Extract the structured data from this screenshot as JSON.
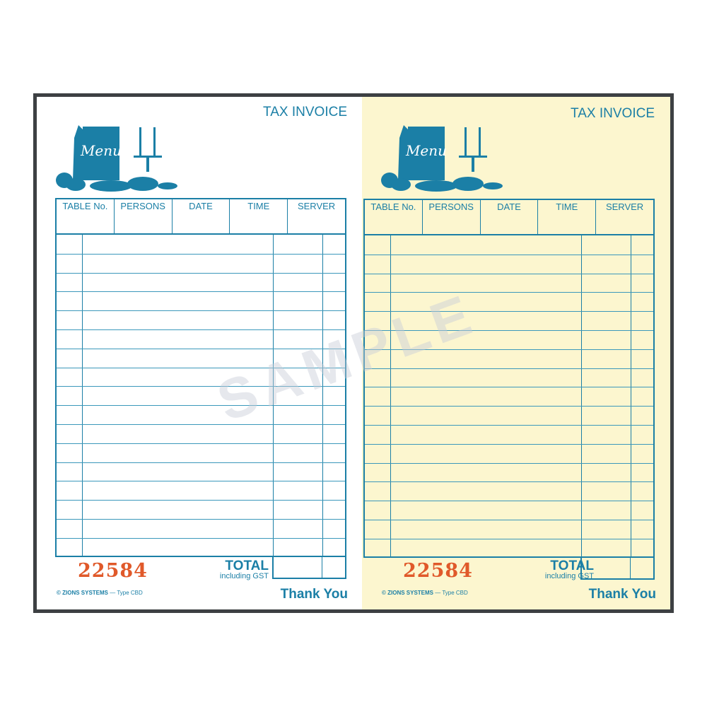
{
  "watermark": "SAMPLE",
  "logo_text": "Menu",
  "colors": {
    "ink": "#1b7fa6",
    "number": "#e0592a",
    "copy2_paper": "#fcf6cf",
    "frame": "#3d4043"
  },
  "pages": [
    {
      "title": "TAX INVOICE",
      "headers": [
        "TABLE No.",
        "PERSONS",
        "DATE",
        "TIME",
        "SERVER"
      ],
      "number": "22584",
      "total": "TOTAL",
      "total_sub": "including GST",
      "copyright": "© ZIONS SYSTEMS",
      "type": "— Type  CBD",
      "thanks": "Thank You"
    },
    {
      "title": "TAX INVOICE",
      "headers": [
        "TABLE No.",
        "PERSONS",
        "DATE",
        "TIME",
        "SERVER"
      ],
      "number": "22584",
      "total": "TOTAL",
      "total_sub": "including GST",
      "copyright": "© ZIONS SYSTEMS",
      "type": "— Type  CBD",
      "thanks": "Thank You"
    }
  ]
}
